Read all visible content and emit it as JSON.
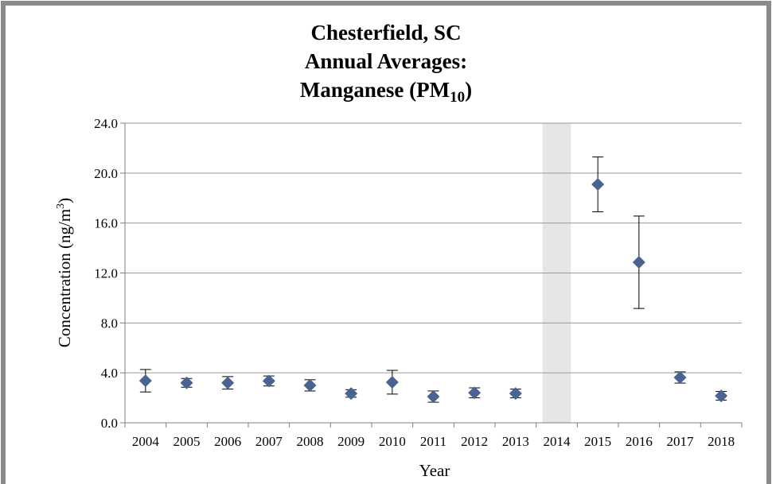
{
  "chart_data": {
    "type": "scatter",
    "title": [
      "Chesterfield, SC",
      "Annual Averages:"
    ],
    "title_last_line": {
      "text": "Manganese (PM",
      "subscript": "10",
      "suffix": ")"
    },
    "x_label": "Year",
    "y_label": {
      "text": "Concentration (ng/m",
      "superscript": "3",
      "suffix": ")"
    },
    "categories": [
      "2004",
      "2005",
      "2006",
      "2007",
      "2008",
      "2009",
      "2010",
      "2011",
      "2012",
      "2013",
      "2014",
      "2015",
      "2016",
      "2017",
      "2018"
    ],
    "values": [
      3.37,
      3.2,
      3.2,
      3.35,
      3.0,
      2.35,
      3.25,
      2.1,
      2.4,
      2.35,
      null,
      19.1,
      12.86,
      3.63,
      2.16
    ],
    "errors": [
      0.9,
      0.35,
      0.5,
      0.4,
      0.45,
      0.3,
      0.95,
      0.45,
      0.4,
      0.35,
      null,
      2.2,
      3.7,
      0.45,
      0.35
    ],
    "color": "#4a6491",
    "shaded_categories": [
      "2014"
    ],
    "ylim": [
      0,
      24
    ],
    "yticks": [
      {
        "value": 0,
        "label": "0.0"
      },
      {
        "value": 4,
        "label": "4.0"
      },
      {
        "value": 8,
        "label": "8.0"
      },
      {
        "value": 12,
        "label": "12.0"
      },
      {
        "value": 16,
        "label": "16.0"
      },
      {
        "value": 20,
        "label": "20.0"
      },
      {
        "value": 24,
        "label": "24.0"
      }
    ],
    "grid": true
  }
}
